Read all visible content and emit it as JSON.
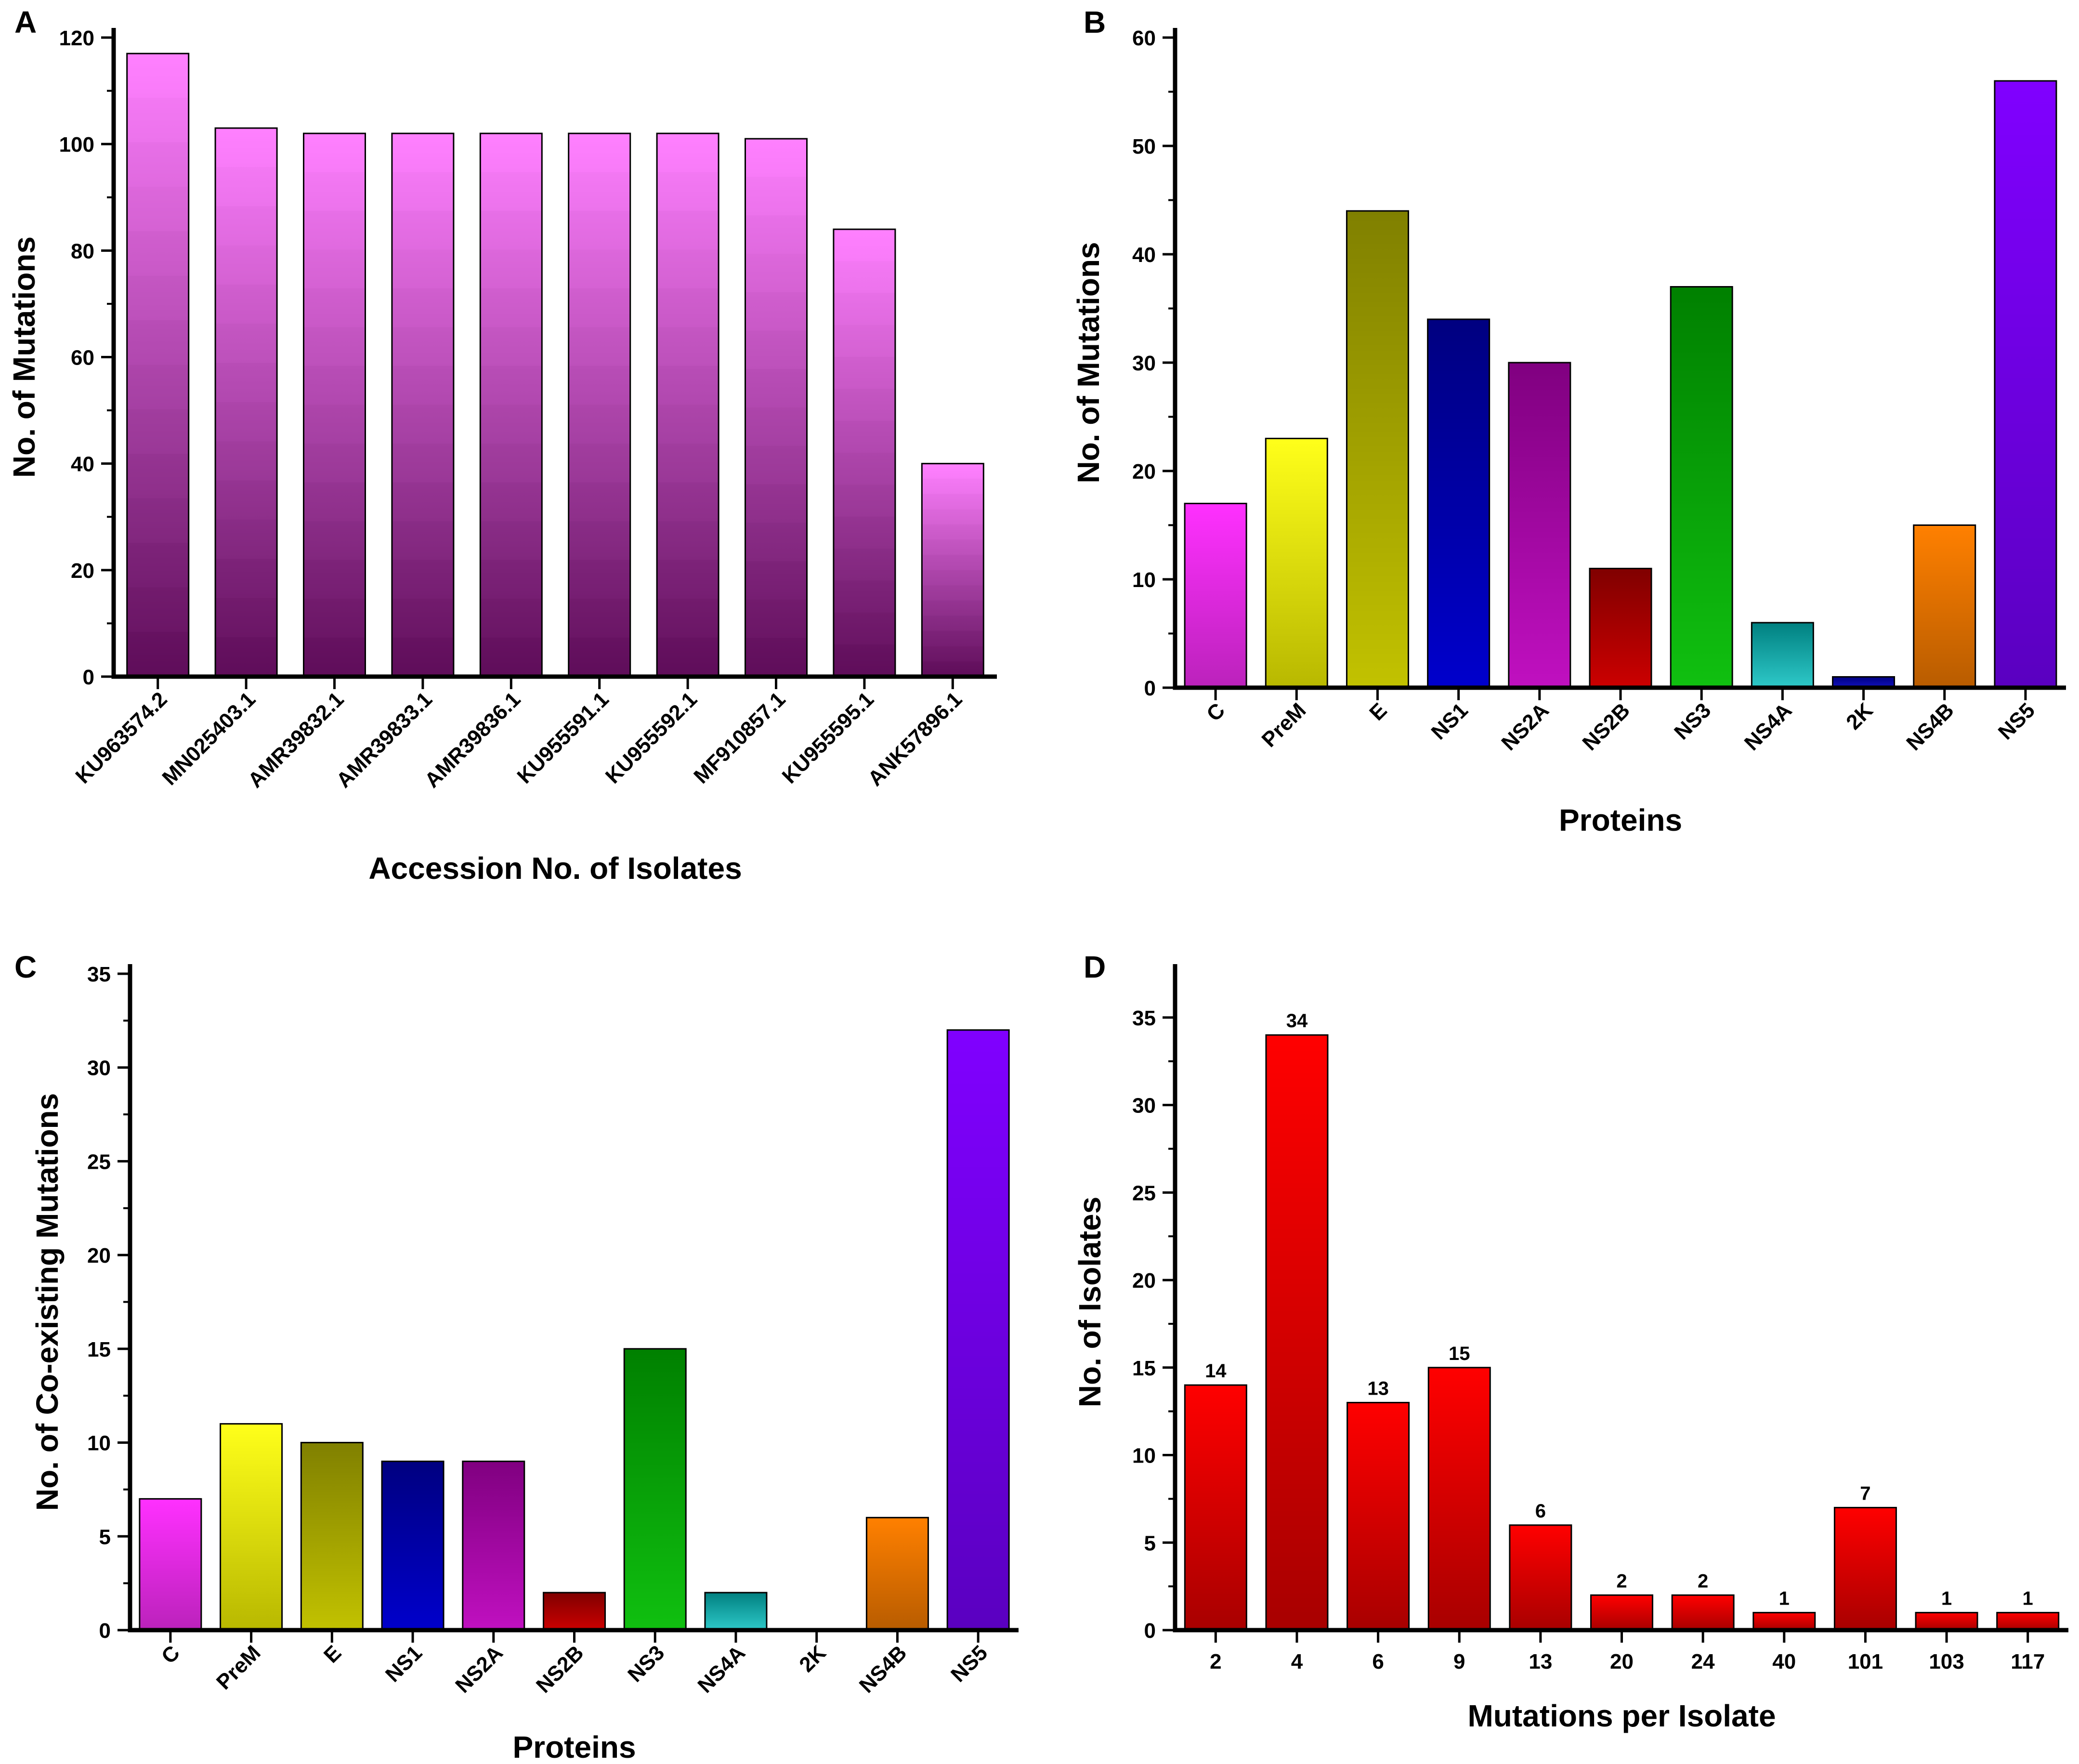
{
  "figure": {
    "description_labels": [
      "A",
      "B",
      "C",
      "D"
    ]
  },
  "chart_data": [
    {
      "panel": "A",
      "type": "bar",
      "title": "",
      "xlabel": "Accession No. of Isolates",
      "ylabel": "No. of Mutations",
      "categories": [
        "KU963574.2",
        "MN025403.1",
        "AMR39832.1",
        "AMR39833.1",
        "AMR39836.1",
        "KU955591.1",
        "KU955592.1",
        "MF910857.1",
        "KU955595.1",
        "ANK57896.1"
      ],
      "values": [
        117,
        103,
        102,
        102,
        102,
        102,
        102,
        101,
        84,
        40
      ],
      "ylim": [
        0,
        120
      ],
      "yticks": [
        0,
        20,
        40,
        60,
        80,
        100,
        120
      ],
      "tick_labels_rotated": true,
      "bar_colors": [
        "#ff80ff",
        "#ff80ff",
        "#ff80ff",
        "#ff80ff",
        "#ff80ff",
        "#ff80ff",
        "#ff80ff",
        "#ff80ff",
        "#ff80ff",
        "#ff80ff"
      ],
      "bar_colors_bottom": [
        "#5a0a55",
        "#5a0a55",
        "#5a0a55",
        "#5a0a55",
        "#5a0a55",
        "#5a0a55",
        "#5a0a55",
        "#5a0a55",
        "#5a0a55",
        "#5a0a55"
      ],
      "banded_gradient": true,
      "data_labels": null,
      "grid": false
    },
    {
      "panel": "B",
      "type": "bar",
      "title": "",
      "xlabel": "Proteins",
      "ylabel": "No. of Mutations",
      "categories": [
        "C",
        "PreM",
        "E",
        "NS1",
        "NS2A",
        "NS2B",
        "NS3",
        "NS4A",
        "2K",
        "NS4B",
        "NS5"
      ],
      "values": [
        17,
        23,
        44,
        34,
        30,
        11,
        37,
        6,
        1,
        15,
        56
      ],
      "ylim": [
        0,
        60
      ],
      "yticks": [
        0,
        10,
        20,
        30,
        40,
        50,
        60
      ],
      "tick_labels_rotated": true,
      "bar_colors": [
        "#ff30ff",
        "#ffff1a",
        "#808000",
        "#000080",
        "#800080",
        "#800000",
        "#008000",
        "#008080",
        "#000080",
        "#ff8000",
        "#8000ff"
      ],
      "bar_colors_bottom": [
        "#bb22bb",
        "#b8b800",
        "#c2c200",
        "#0000cc",
        "#c010c0",
        "#cc0000",
        "#10c010",
        "#2ec9c9",
        "#1010c0",
        "#b85c00",
        "#5a00c0"
      ],
      "data_labels": null,
      "grid": false
    },
    {
      "panel": "C",
      "type": "bar",
      "title": "",
      "xlabel": "Proteins",
      "ylabel": "No. of Co-existing Mutations",
      "categories": [
        "C",
        "PreM",
        "E",
        "NS1",
        "NS2A",
        "NS2B",
        "NS3",
        "NS4A",
        "2K",
        "NS4B",
        "NS5"
      ],
      "values": [
        7,
        11,
        10,
        9,
        9,
        2,
        15,
        2,
        0,
        6,
        32
      ],
      "ylim": [
        0,
        35
      ],
      "yticks": [
        0,
        5,
        10,
        15,
        20,
        25,
        30,
        35
      ],
      "tick_labels_rotated": true,
      "bar_colors": [
        "#ff30ff",
        "#ffff1a",
        "#808000",
        "#000080",
        "#800080",
        "#800000",
        "#008000",
        "#008080",
        "#000080",
        "#ff8000",
        "#8000ff"
      ],
      "bar_colors_bottom": [
        "#bb22bb",
        "#b8b800",
        "#c2c200",
        "#0000cc",
        "#c010c0",
        "#cc0000",
        "#10c010",
        "#2ec9c9",
        "#1010c0",
        "#b85c00",
        "#5a00c0"
      ],
      "data_labels": null,
      "grid": false
    },
    {
      "panel": "D",
      "type": "bar",
      "title": "",
      "xlabel": "Mutations per Isolate",
      "ylabel": "No. of Isolates",
      "categories": [
        "2",
        "4",
        "6",
        "9",
        "13",
        "20",
        "24",
        "40",
        "101",
        "103",
        "117"
      ],
      "values": [
        14,
        34,
        13,
        15,
        6,
        2,
        2,
        1,
        7,
        1,
        1
      ],
      "ylim": [
        0,
        37.5
      ],
      "yticks": [
        0,
        5,
        10,
        15,
        20,
        25,
        30,
        35
      ],
      "tick_labels_rotated": false,
      "bar_colors": [
        "#ff0000",
        "#ff0000",
        "#ff0000",
        "#ff0000",
        "#ff0000",
        "#ff0000",
        "#ff0000",
        "#ff0000",
        "#ff0000",
        "#ff0000",
        "#ff0000"
      ],
      "bar_colors_bottom": [
        "#a80000",
        "#a80000",
        "#a80000",
        "#a80000",
        "#a80000",
        "#a80000",
        "#a80000",
        "#a80000",
        "#a80000",
        "#a80000",
        "#a80000"
      ],
      "data_labels": [
        "14",
        "34",
        "13",
        "15",
        "6",
        "2",
        "2",
        "1",
        "7",
        "1",
        "1"
      ],
      "grid": false
    }
  ]
}
